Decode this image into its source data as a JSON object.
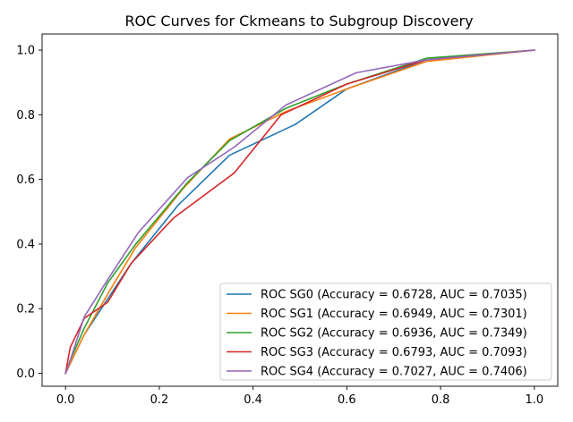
{
  "chart_data": {
    "type": "line",
    "title": "ROC Curves for Ckmeans to Subgroup Discovery",
    "xlabel": "",
    "ylabel": "",
    "xlim": [
      -0.05,
      1.05
    ],
    "ylim": [
      -0.04,
      1.05
    ],
    "xticks": [
      0.0,
      0.2,
      0.4,
      0.6,
      0.8,
      1.0
    ],
    "xtick_labels": [
      "0.0",
      "0.2",
      "0.4",
      "0.6",
      "0.8",
      "1.0"
    ],
    "yticks": [
      0.0,
      0.2,
      0.4,
      0.6,
      0.8,
      1.0
    ],
    "ytick_labels": [
      "0.0",
      "0.2",
      "0.4",
      "0.6",
      "0.8",
      "1.0"
    ],
    "grid": false,
    "legend_position": "lower-right",
    "series": [
      {
        "name": "ROC SG0 (Accuracy = 0.6728, AUC = 0.7035)",
        "color": "#1f77b4",
        "x": [
          0.0,
          0.01,
          0.04,
          0.14,
          0.24,
          0.35,
          0.49,
          0.6,
          0.77,
          1.0
        ],
        "y": [
          0.0,
          0.03,
          0.12,
          0.34,
          0.52,
          0.675,
          0.77,
          0.88,
          0.97,
          1.0
        ]
      },
      {
        "name": "ROC SG1 (Accuracy = 0.6949, AUC = 0.7301)",
        "color": "#ff7f0e",
        "x": [
          0.0,
          0.01,
          0.04,
          0.1,
          0.15,
          0.25,
          0.35,
          0.47,
          0.6,
          0.77,
          1.0
        ],
        "y": [
          0.0,
          0.03,
          0.12,
          0.27,
          0.39,
          0.57,
          0.725,
          0.81,
          0.88,
          0.965,
          1.0
        ]
      },
      {
        "name": "ROC SG2 (Accuracy = 0.6936, AUC = 0.7349)",
        "color": "#2ca02c",
        "x": [
          0.0,
          0.01,
          0.04,
          0.09,
          0.15,
          0.26,
          0.35,
          0.47,
          0.6,
          0.77,
          1.0
        ],
        "y": [
          0.0,
          0.04,
          0.14,
          0.28,
          0.4,
          0.59,
          0.72,
          0.82,
          0.895,
          0.975,
          1.0
        ]
      },
      {
        "name": "ROC SG3 (Accuracy = 0.6793, AUC = 0.7093)",
        "color": "#d62728",
        "x": [
          0.0,
          0.01,
          0.04,
          0.09,
          0.14,
          0.23,
          0.36,
          0.46,
          0.6,
          0.77,
          1.0
        ],
        "y": [
          0.0,
          0.08,
          0.17,
          0.22,
          0.34,
          0.48,
          0.62,
          0.8,
          0.895,
          0.97,
          1.0
        ]
      },
      {
        "name": "ROC SG4 (Accuracy = 0.7027, AUC = 0.7406)",
        "color": "#9467bd",
        "x": [
          0.0,
          0.01,
          0.04,
          0.09,
          0.155,
          0.26,
          0.36,
          0.47,
          0.62,
          0.77,
          1.0
        ],
        "y": [
          0.0,
          0.04,
          0.175,
          0.29,
          0.435,
          0.605,
          0.7,
          0.83,
          0.93,
          0.97,
          1.0
        ]
      }
    ]
  }
}
